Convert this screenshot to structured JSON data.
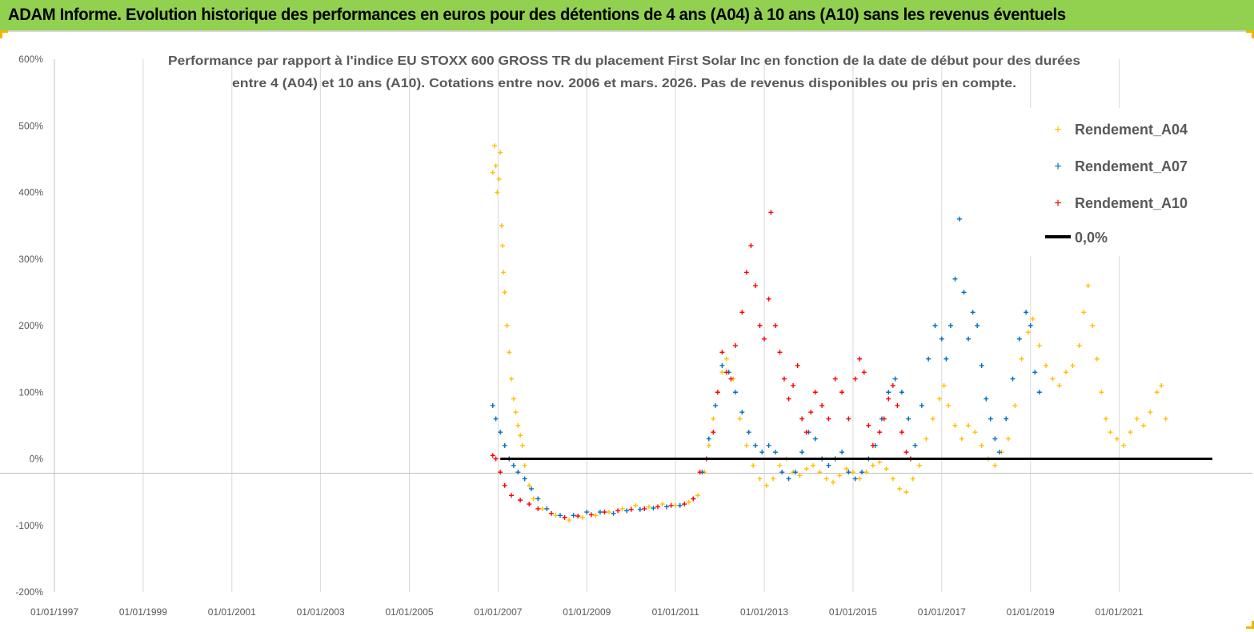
{
  "header": {
    "banner": "ADAM Informe. Evolution historique des performances en euros pour des détentions de 4 ans (A04) à 10 ans (A10) sans les revenus éventuels"
  },
  "colors": {
    "banner_bg": "#92d050",
    "a04": "#ffc000",
    "a07": "#0070c0",
    "a10": "#ff0000",
    "zero": "#000000"
  },
  "chart_data": {
    "type": "scatter",
    "title_lines": [
      "Performance par rapport à l'indice EU STOXX 600 GROSS TR  du placement First Solar Inc en fonction de la date de début pour des durées",
      "entre 4 (A04) et 10 ans (A10). Cotations entre nov. 2006 et mars. 2026. Pas de revenus disponibles ou pris en compte."
    ],
    "y_axis": {
      "min": -200,
      "max": 600,
      "ticks": [
        "600%",
        "500%",
        "400%",
        "300%",
        "200%",
        "100%",
        "0%",
        "-100%",
        "-200%"
      ]
    },
    "x_axis": {
      "min": 1997.0,
      "max": 2023.1,
      "ticks": [
        "01/01/1997",
        "01/01/1999",
        "01/01/2001",
        "01/01/2003",
        "01/01/2005",
        "01/01/2007",
        "01/01/2009",
        "01/01/2011",
        "01/01/2013",
        "01/01/2015",
        "01/01/2017",
        "01/01/2019",
        "01/01/2021"
      ]
    },
    "grid": "vertical",
    "legend_position": "top-right",
    "series": [
      {
        "name": "Rendement_A04",
        "marker": "+",
        "points": [
          [
            2006.88,
            430
          ],
          [
            2006.92,
            470
          ],
          [
            2006.95,
            440
          ],
          [
            2006.98,
            400
          ],
          [
            2007.02,
            420
          ],
          [
            2007.05,
            460
          ],
          [
            2007.08,
            350
          ],
          [
            2007.1,
            320
          ],
          [
            2007.12,
            280
          ],
          [
            2007.15,
            250
          ],
          [
            2007.2,
            200
          ],
          [
            2007.25,
            160
          ],
          [
            2007.3,
            120
          ],
          [
            2007.35,
            90
          ],
          [
            2007.4,
            70
          ],
          [
            2007.45,
            50
          ],
          [
            2007.5,
            35
          ],
          [
            2007.55,
            20
          ],
          [
            2007.6,
            -10
          ],
          [
            2007.7,
            -40
          ],
          [
            2007.8,
            -60
          ],
          [
            2008.0,
            -75
          ],
          [
            2008.3,
            -85
          ],
          [
            2008.6,
            -92
          ],
          [
            2008.9,
            -88
          ],
          [
            2009.2,
            -85
          ],
          [
            2009.5,
            -80
          ],
          [
            2009.8,
            -75
          ],
          [
            2010.1,
            -70
          ],
          [
            2010.4,
            -72
          ],
          [
            2010.7,
            -68
          ],
          [
            2011.0,
            -70
          ],
          [
            2011.3,
            -65
          ],
          [
            2011.5,
            -55
          ],
          [
            2011.65,
            -20
          ],
          [
            2011.75,
            20
          ],
          [
            2011.85,
            60
          ],
          [
            2011.95,
            100
          ],
          [
            2012.05,
            130
          ],
          [
            2012.15,
            150
          ],
          [
            2012.3,
            120
          ],
          [
            2012.45,
            60
          ],
          [
            2012.6,
            20
          ],
          [
            2012.75,
            -10
          ],
          [
            2012.9,
            -30
          ],
          [
            2013.05,
            -40
          ],
          [
            2013.2,
            -30
          ],
          [
            2013.35,
            -10
          ],
          [
            2013.5,
            0
          ],
          [
            2013.65,
            -20
          ],
          [
            2013.8,
            -25
          ],
          [
            2013.95,
            -15
          ],
          [
            2014.1,
            -10
          ],
          [
            2014.25,
            -20
          ],
          [
            2014.4,
            -30
          ],
          [
            2014.55,
            -35
          ],
          [
            2014.7,
            -25
          ],
          [
            2014.85,
            -15
          ],
          [
            2015.0,
            -20
          ],
          [
            2015.15,
            -30
          ],
          [
            2015.3,
            -20
          ],
          [
            2015.45,
            -10
          ],
          [
            2015.6,
            -5
          ],
          [
            2015.75,
            -15
          ],
          [
            2015.9,
            -30
          ],
          [
            2016.05,
            -45
          ],
          [
            2016.2,
            -50
          ],
          [
            2016.35,
            -30
          ],
          [
            2016.5,
            -10
          ],
          [
            2016.65,
            30
          ],
          [
            2016.8,
            60
          ],
          [
            2016.95,
            90
          ],
          [
            2017.05,
            110
          ],
          [
            2017.15,
            80
          ],
          [
            2017.3,
            50
          ],
          [
            2017.45,
            30
          ],
          [
            2017.6,
            50
          ],
          [
            2017.75,
            40
          ],
          [
            2017.9,
            20
          ],
          [
            2018.05,
            0
          ],
          [
            2018.2,
            -10
          ],
          [
            2018.35,
            10
          ],
          [
            2018.5,
            30
          ],
          [
            2018.65,
            80
          ],
          [
            2018.8,
            150
          ],
          [
            2018.95,
            190
          ],
          [
            2019.05,
            210
          ],
          [
            2019.2,
            170
          ],
          [
            2019.35,
            140
          ],
          [
            2019.5,
            120
          ],
          [
            2019.65,
            110
          ],
          [
            2019.8,
            130
          ],
          [
            2019.95,
            140
          ],
          [
            2020.1,
            170
          ],
          [
            2020.2,
            220
          ],
          [
            2020.3,
            260
          ],
          [
            2020.4,
            200
          ],
          [
            2020.5,
            150
          ],
          [
            2020.6,
            100
          ],
          [
            2020.7,
            60
          ],
          [
            2020.8,
            40
          ],
          [
            2020.95,
            30
          ],
          [
            2021.1,
            20
          ],
          [
            2021.25,
            40
          ],
          [
            2021.4,
            60
          ],
          [
            2021.55,
            50
          ],
          [
            2021.7,
            70
          ],
          [
            2021.85,
            100
          ],
          [
            2021.95,
            110
          ],
          [
            2022.05,
            60
          ]
        ]
      },
      {
        "name": "Rendement_A07",
        "marker": "+",
        "points": [
          [
            2006.88,
            80
          ],
          [
            2006.95,
            60
          ],
          [
            2007.05,
            40
          ],
          [
            2007.15,
            20
          ],
          [
            2007.25,
            0
          ],
          [
            2007.35,
            -10
          ],
          [
            2007.45,
            -20
          ],
          [
            2007.6,
            -30
          ],
          [
            2007.75,
            -45
          ],
          [
            2007.9,
            -60
          ],
          [
            2008.1,
            -75
          ],
          [
            2008.4,
            -85
          ],
          [
            2008.7,
            -85
          ],
          [
            2009.0,
            -80
          ],
          [
            2009.3,
            -80
          ],
          [
            2009.6,
            -82
          ],
          [
            2009.9,
            -78
          ],
          [
            2010.2,
            -76
          ],
          [
            2010.5,
            -74
          ],
          [
            2010.8,
            -72
          ],
          [
            2011.1,
            -70
          ],
          [
            2011.4,
            -60
          ],
          [
            2011.6,
            -20
          ],
          [
            2011.75,
            30
          ],
          [
            2011.9,
            80
          ],
          [
            2012.05,
            140
          ],
          [
            2012.2,
            130
          ],
          [
            2012.35,
            100
          ],
          [
            2012.5,
            70
          ],
          [
            2012.65,
            40
          ],
          [
            2012.8,
            20
          ],
          [
            2012.95,
            10
          ],
          [
            2013.1,
            20
          ],
          [
            2013.25,
            10
          ],
          [
            2013.4,
            -20
          ],
          [
            2013.55,
            -30
          ],
          [
            2013.7,
            -20
          ],
          [
            2013.85,
            10
          ],
          [
            2014.0,
            40
          ],
          [
            2014.15,
            30
          ],
          [
            2014.3,
            0
          ],
          [
            2014.45,
            -10
          ],
          [
            2014.6,
            0
          ],
          [
            2014.75,
            10
          ],
          [
            2014.9,
            -20
          ],
          [
            2015.05,
            -30
          ],
          [
            2015.2,
            -20
          ],
          [
            2015.35,
            0
          ],
          [
            2015.5,
            20
          ],
          [
            2015.65,
            60
          ],
          [
            2015.8,
            100
          ],
          [
            2015.95,
            120
          ],
          [
            2016.1,
            100
          ],
          [
            2016.25,
            60
          ],
          [
            2016.4,
            20
          ],
          [
            2016.55,
            80
          ],
          [
            2016.7,
            150
          ],
          [
            2016.85,
            200
          ],
          [
            2017.0,
            180
          ],
          [
            2017.1,
            150
          ],
          [
            2017.2,
            200
          ],
          [
            2017.3,
            270
          ],
          [
            2017.4,
            360
          ],
          [
            2017.5,
            250
          ],
          [
            2017.6,
            180
          ],
          [
            2017.7,
            220
          ],
          [
            2017.8,
            200
          ],
          [
            2017.9,
            140
          ],
          [
            2018.0,
            90
          ],
          [
            2018.1,
            60
          ],
          [
            2018.2,
            30
          ],
          [
            2018.3,
            10
          ],
          [
            2018.45,
            60
          ],
          [
            2018.6,
            120
          ],
          [
            2018.75,
            180
          ],
          [
            2018.9,
            220
          ],
          [
            2019.0,
            200
          ],
          [
            2019.1,
            130
          ],
          [
            2019.2,
            100
          ]
        ]
      },
      {
        "name": "Rendement_A10",
        "marker": "+",
        "points": [
          [
            2006.88,
            5
          ],
          [
            2006.95,
            0
          ],
          [
            2007.05,
            -20
          ],
          [
            2007.15,
            -40
          ],
          [
            2007.3,
            -55
          ],
          [
            2007.5,
            -62
          ],
          [
            2007.7,
            -68
          ],
          [
            2007.9,
            -75
          ],
          [
            2008.2,
            -82
          ],
          [
            2008.5,
            -88
          ],
          [
            2008.8,
            -86
          ],
          [
            2009.1,
            -84
          ],
          [
            2009.4,
            -80
          ],
          [
            2009.7,
            -78
          ],
          [
            2010.0,
            -76
          ],
          [
            2010.3,
            -75
          ],
          [
            2010.6,
            -72
          ],
          [
            2010.9,
            -70
          ],
          [
            2011.2,
            -68
          ],
          [
            2011.4,
            -60
          ],
          [
            2011.55,
            -20
          ],
          [
            2011.7,
            0
          ],
          [
            2011.85,
            40
          ],
          [
            2011.95,
            100
          ],
          [
            2012.05,
            160
          ],
          [
            2012.15,
            130
          ],
          [
            2012.25,
            120
          ],
          [
            2012.35,
            170
          ],
          [
            2012.5,
            220
          ],
          [
            2012.6,
            280
          ],
          [
            2012.7,
            320
          ],
          [
            2012.8,
            260
          ],
          [
            2012.9,
            200
          ],
          [
            2013.0,
            180
          ],
          [
            2013.1,
            240
          ],
          [
            2013.15,
            370
          ],
          [
            2013.25,
            200
          ],
          [
            2013.35,
            160
          ],
          [
            2013.45,
            120
          ],
          [
            2013.55,
            90
          ],
          [
            2013.65,
            110
          ],
          [
            2013.75,
            140
          ],
          [
            2013.85,
            60
          ],
          [
            2013.95,
            40
          ],
          [
            2014.05,
            70
          ],
          [
            2014.15,
            100
          ],
          [
            2014.3,
            80
          ],
          [
            2014.45,
            60
          ],
          [
            2014.6,
            120
          ],
          [
            2014.75,
            100
          ],
          [
            2014.9,
            60
          ],
          [
            2015.05,
            120
          ],
          [
            2015.15,
            150
          ],
          [
            2015.25,
            130
          ],
          [
            2015.35,
            50
          ],
          [
            2015.45,
            20
          ],
          [
            2015.6,
            40
          ],
          [
            2015.7,
            60
          ],
          [
            2015.8,
            90
          ],
          [
            2015.9,
            110
          ],
          [
            2016.0,
            80
          ],
          [
            2016.1,
            40
          ],
          [
            2016.2,
            10
          ],
          [
            2016.3,
            0
          ]
        ]
      },
      {
        "name": "0,0%",
        "marker": "line",
        "points": [
          [
            2007.05,
            0
          ],
          [
            2023.1,
            0
          ]
        ]
      }
    ]
  }
}
